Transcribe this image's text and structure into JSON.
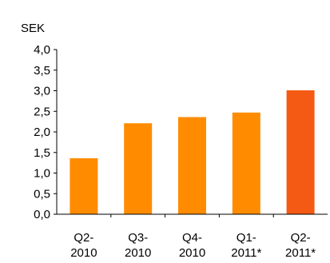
{
  "chart_data": {
    "type": "bar",
    "title": "",
    "unit_label": "SEK",
    "xlabel": "",
    "ylabel": "",
    "ylim": [
      0,
      4.0
    ],
    "yticks": [
      "0,0",
      "0,5",
      "1,0",
      "1,5",
      "2,0",
      "2,5",
      "3,0",
      "3,5",
      "4,0"
    ],
    "categories": [
      [
        "Q2-",
        "2010"
      ],
      [
        "Q3-",
        "2010"
      ],
      [
        "Q4-",
        "2010"
      ],
      [
        "Q1-",
        "2011*"
      ],
      [
        "Q2-",
        "2011*"
      ]
    ],
    "values": [
      1.36,
      2.21,
      2.36,
      2.47,
      3.01
    ],
    "colors": [
      "#FF8C00",
      "#FF8C00",
      "#FF8C00",
      "#FF8C00",
      "#F55A14"
    ],
    "grid": false,
    "legend": "none"
  }
}
